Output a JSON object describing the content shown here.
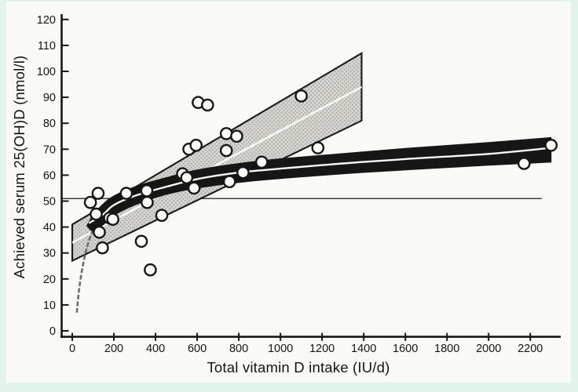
{
  "figure": {
    "frame_color": "#e2f3e9",
    "canvas_color": "#f9f9f6",
    "ink_color": "#171717",
    "stipple_bg": "#d6d6d2",
    "stipple_dot": "#a19d98",
    "band_fill": "#161616",
    "fit_line_color": "#f7f7f4",
    "flare_color": "#6d6d6b",
    "reference_line_color": "#3f3f3d",
    "point_fill": "#fbfbf8"
  },
  "chart_data": {
    "type": "scatter",
    "title": "",
    "xlabel": "Total vitamin D intake (IU/d)",
    "ylabel": "Achieved serum 25(OH)D (nmol/l)",
    "xlim": [
      0,
      2350
    ],
    "ylim": [
      0,
      120
    ],
    "grid": false,
    "x_ticks": [
      0,
      200,
      400,
      600,
      800,
      1000,
      1200,
      1400,
      1600,
      1800,
      2000,
      2200
    ],
    "y_ticks": [
      0,
      10,
      20,
      30,
      40,
      50,
      60,
      70,
      80,
      90,
      100,
      110,
      120
    ],
    "points": [
      [
        87,
        49.5
      ],
      [
        115,
        45
      ],
      [
        124,
        53
      ],
      [
        130,
        38
      ],
      [
        145,
        32
      ],
      [
        180,
        43.5
      ],
      [
        195,
        43
      ],
      [
        260,
        53
      ],
      [
        332,
        34.5
      ],
      [
        358,
        54
      ],
      [
        360,
        49.5
      ],
      [
        375,
        23.5
      ],
      [
        430,
        44.5
      ],
      [
        530,
        60.5
      ],
      [
        550,
        59
      ],
      [
        560,
        70
      ],
      [
        585,
        55
      ],
      [
        595,
        71.5
      ],
      [
        605,
        88
      ],
      [
        650,
        87
      ],
      [
        740,
        76
      ],
      [
        740,
        69.5
      ],
      [
        755,
        57.5
      ],
      [
        790,
        75
      ],
      [
        820,
        61
      ],
      [
        910,
        65
      ],
      [
        1100,
        90.5
      ],
      [
        1180,
        70.5
      ],
      [
        2170,
        64.5
      ],
      [
        2300,
        71.5
      ]
    ],
    "reference_line": {
      "y": 51,
      "x_from_iu": -50,
      "x_to_iu": 2255
    },
    "linear_model_band": {
      "description": "stippled confidence band of linear model, x 0 to 1390 IU/d",
      "top_edge": [
        [
          0,
          41
        ],
        [
          1390,
          107
        ]
      ],
      "bottom_edge": [
        [
          0,
          27
        ],
        [
          1390,
          81
        ]
      ],
      "center_line": [
        [
          0,
          34
        ],
        [
          1390,
          94
        ]
      ]
    },
    "curvilinear_model_band": {
      "description": "solid black confidence band of curvilinear (log) model",
      "upper_edge": [
        [
          70,
          40.5
        ],
        [
          100,
          44.5
        ],
        [
          150,
          49
        ],
        [
          200,
          52
        ],
        [
          300,
          55.5
        ],
        [
          450,
          59
        ],
        [
          600,
          62
        ],
        [
          800,
          64.5
        ],
        [
          1000,
          66.3
        ],
        [
          1300,
          68.3
        ],
        [
          1600,
          70.3
        ],
        [
          2000,
          72.6
        ],
        [
          2300,
          74.5
        ]
      ],
      "lower_edge": [
        [
          70,
          40.5
        ],
        [
          100,
          38.5
        ],
        [
          150,
          41
        ],
        [
          200,
          44.5
        ],
        [
          300,
          48.5
        ],
        [
          450,
          52.5
        ],
        [
          600,
          55
        ],
        [
          800,
          57.2
        ],
        [
          1000,
          58.7
        ],
        [
          1300,
          60.5
        ],
        [
          1600,
          62
        ],
        [
          2000,
          63.8
        ],
        [
          2300,
          65
        ]
      ],
      "center_line": [
        [
          80,
          41.5
        ],
        [
          150,
          45
        ],
        [
          200,
          48.5
        ],
        [
          300,
          52
        ],
        [
          450,
          55.5
        ],
        [
          600,
          58.5
        ],
        [
          800,
          61
        ],
        [
          1000,
          62.5
        ],
        [
          1300,
          64.5
        ],
        [
          1600,
          66.2
        ],
        [
          2000,
          68.2
        ],
        [
          2300,
          70.5
        ]
      ]
    },
    "lower_ci_flare_line": [
      [
        22,
        7
      ],
      [
        30,
        14
      ],
      [
        42,
        21
      ],
      [
        58,
        28
      ],
      [
        75,
        33.5
      ],
      [
        95,
        38
      ],
      [
        112,
        41
      ]
    ]
  }
}
